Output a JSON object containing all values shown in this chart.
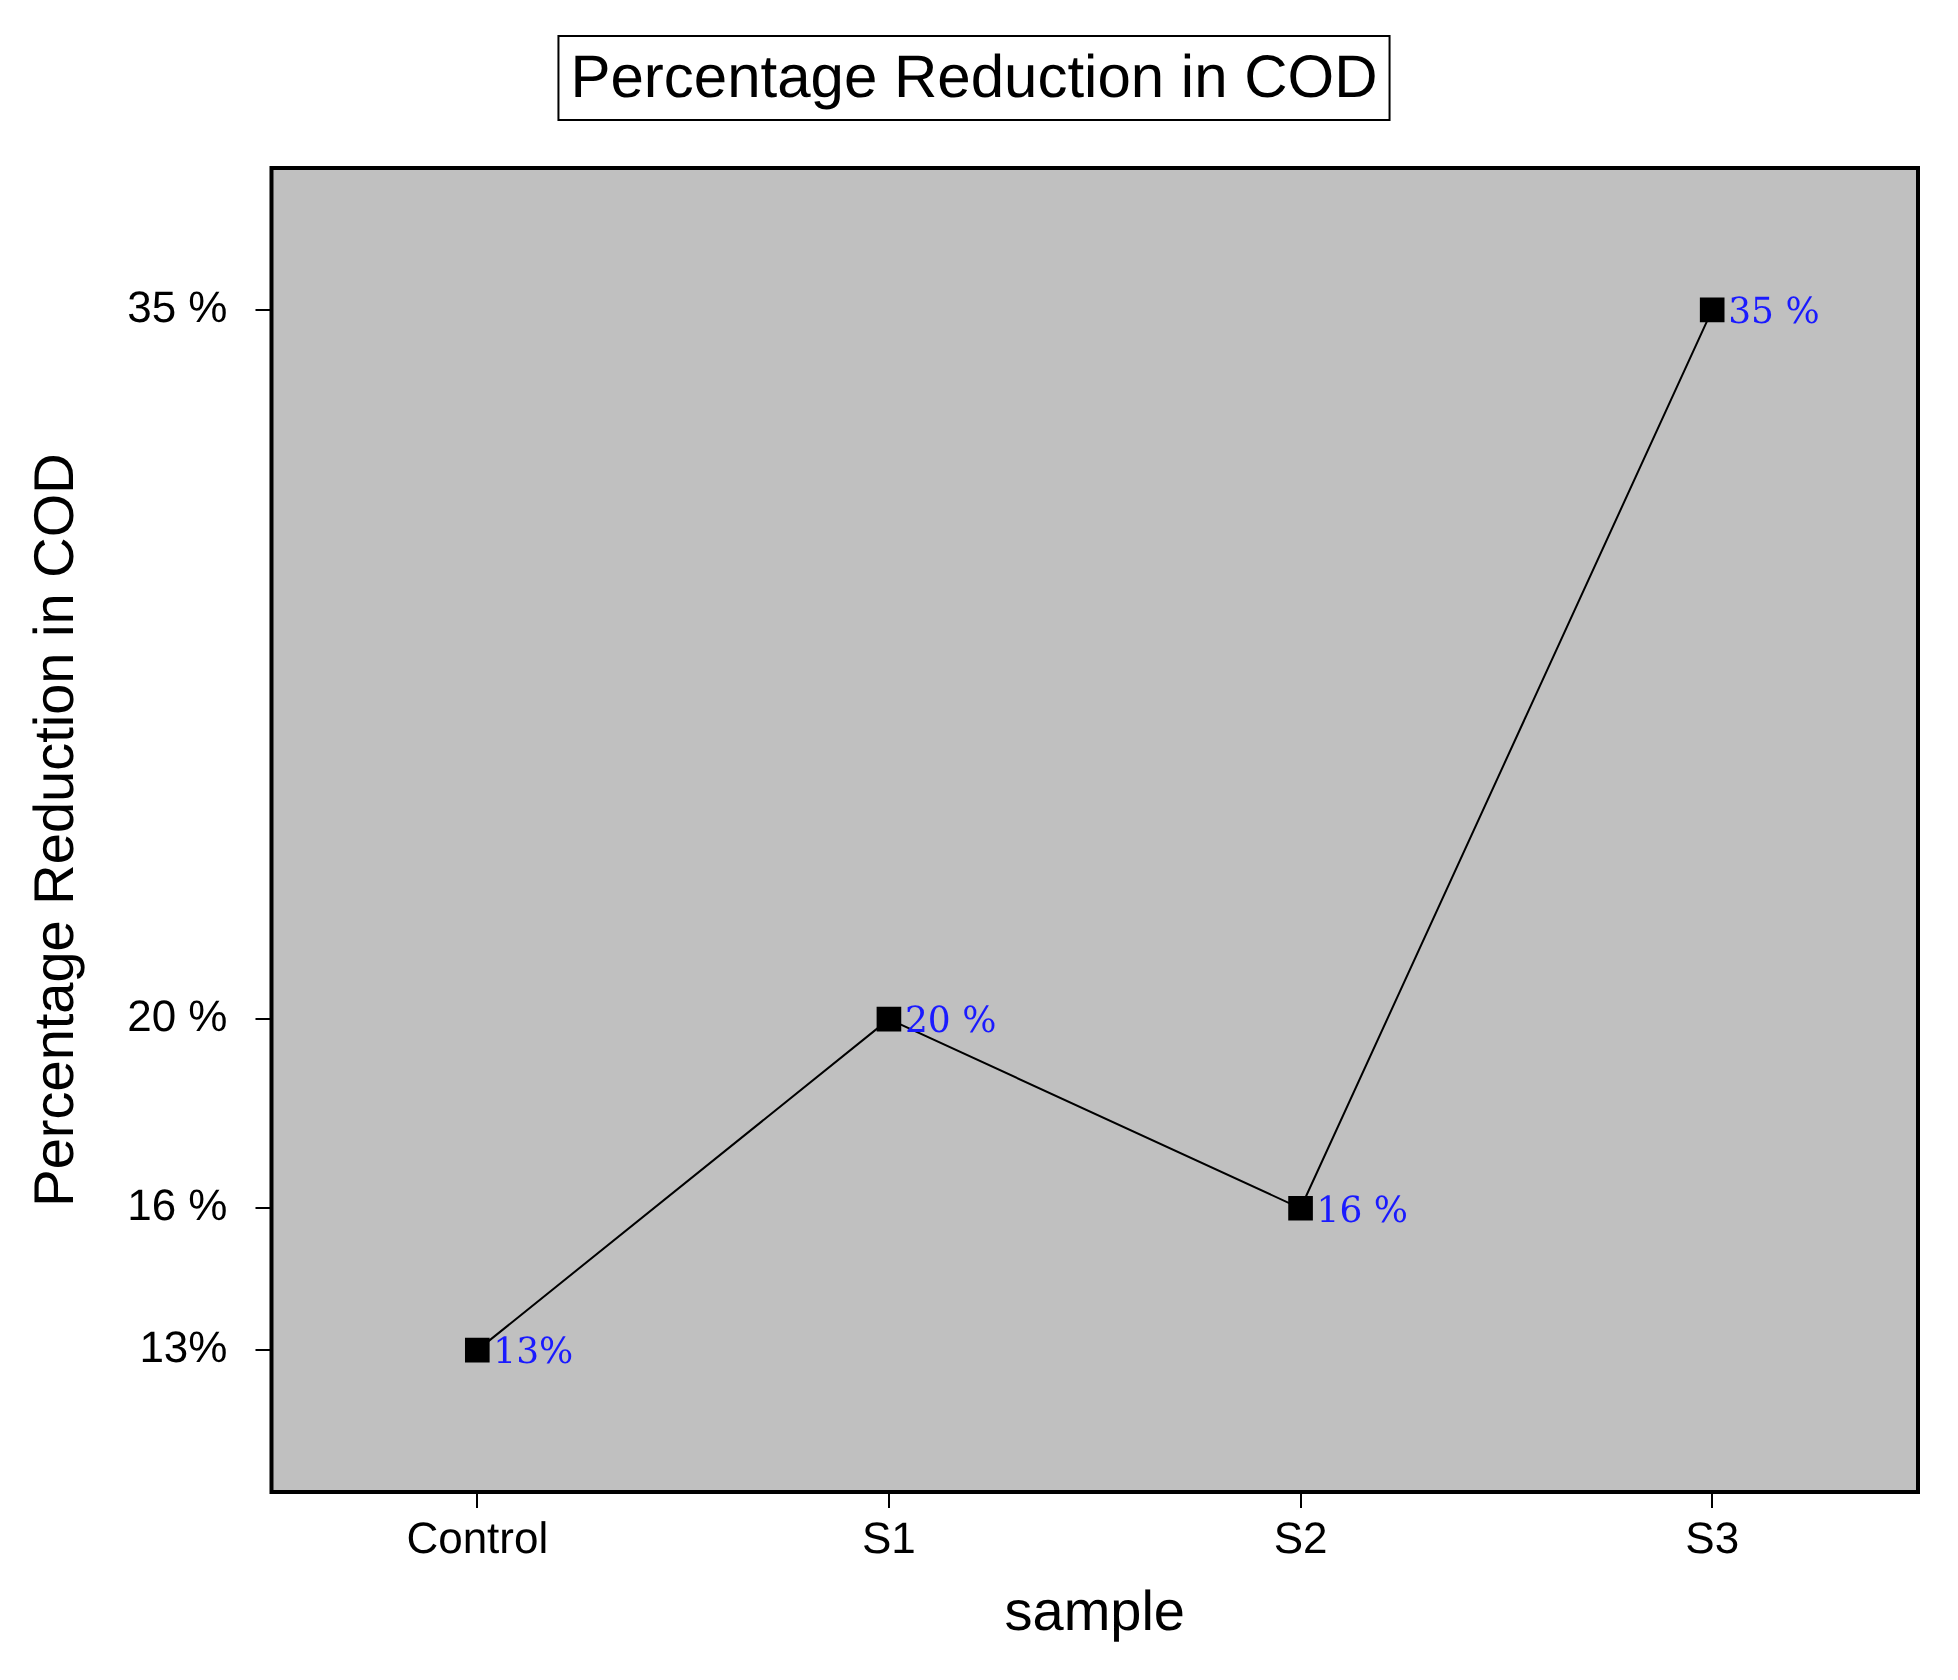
{
  "chart_data": {
    "type": "line",
    "title": "Percentage Reduction in COD",
    "xlabel": "sample",
    "ylabel": "Percentage Reduction in COD",
    "categories": [
      "Control",
      "S1",
      "S2",
      "S3"
    ],
    "series": [
      {
        "color": "#000000",
        "values": [
          13,
          20,
          16,
          35
        ],
        "value_labels": [
          "13%",
          "20 %",
          "16 %",
          "35 %"
        ]
      }
    ],
    "ylim": [
      10,
      38
    ],
    "yticks": [
      {
        "value": 13,
        "label": "13%"
      },
      {
        "value": 16,
        "label": "16 %"
      },
      {
        "value": 20,
        "label": "20 %"
      },
      {
        "value": 35,
        "label": "35 %"
      }
    ],
    "grid": false,
    "legend": false,
    "marker": "square",
    "line_style": "solid"
  }
}
